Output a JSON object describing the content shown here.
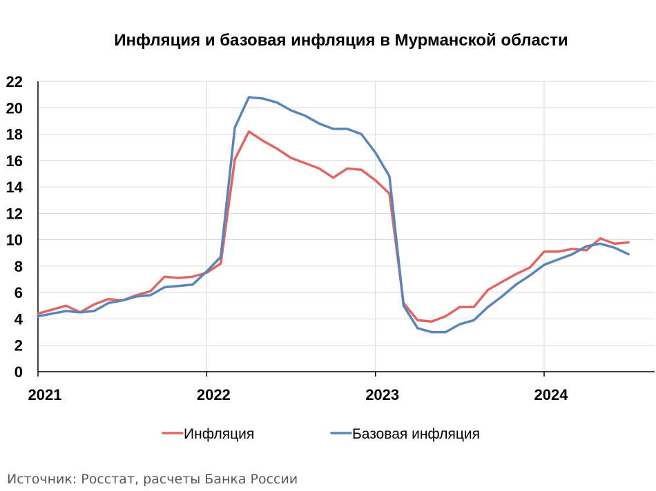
{
  "chart_data": {
    "type": "line",
    "title": "Инфляция и базовая инфляция в Мурманской области",
    "xlabel": "",
    "ylabel": "",
    "ylim": [
      0,
      22
    ],
    "yticks": [
      "0",
      "2",
      "4",
      "6",
      "8",
      "10",
      "12",
      "14",
      "16",
      "18",
      "20",
      "22"
    ],
    "xticks": [
      "2021",
      "2022",
      "2023",
      "2024"
    ],
    "grid": true,
    "legend": "bottom",
    "x_start": "2021-01",
    "x": [
      "2021-01",
      "2021-02",
      "2021-03",
      "2021-04",
      "2021-05",
      "2021-06",
      "2021-07",
      "2021-08",
      "2021-09",
      "2021-10",
      "2021-11",
      "2021-12",
      "2022-01",
      "2022-02",
      "2022-03",
      "2022-04",
      "2022-05",
      "2022-06",
      "2022-07",
      "2022-08",
      "2022-09",
      "2022-10",
      "2022-11",
      "2022-12",
      "2023-01",
      "2023-02",
      "2023-03",
      "2023-04",
      "2023-05",
      "2023-06",
      "2023-07",
      "2023-08",
      "2023-09",
      "2023-10",
      "2023-11",
      "2023-12",
      "2024-01",
      "2024-02",
      "2024-03",
      "2024-04",
      "2024-05",
      "2024-06",
      "2024-07"
    ],
    "series": [
      {
        "name": "Инфляция",
        "color": "#e06666",
        "values": [
          4.4,
          4.7,
          5.0,
          4.5,
          5.1,
          5.5,
          5.4,
          5.8,
          6.1,
          7.2,
          7.1,
          7.2,
          7.5,
          8.2,
          16.1,
          18.2,
          17.5,
          16.9,
          16.2,
          15.8,
          15.4,
          14.7,
          15.4,
          15.3,
          14.5,
          13.5,
          5.2,
          3.9,
          3.8,
          4.2,
          4.9,
          4.9,
          6.2,
          6.8,
          7.4,
          7.9,
          9.1,
          9.1,
          9.3,
          9.2,
          10.1,
          9.7,
          9.8
        ]
      },
      {
        "name": "Базовая инфляция",
        "color": "#5b85b9",
        "values": [
          4.2,
          4.4,
          4.6,
          4.5,
          4.6,
          5.2,
          5.4,
          5.7,
          5.8,
          6.4,
          6.5,
          6.6,
          7.6,
          8.7,
          18.5,
          20.8,
          20.7,
          20.4,
          19.8,
          19.4,
          18.8,
          18.4,
          18.4,
          18.0,
          16.6,
          14.8,
          5.0,
          3.3,
          3.0,
          3.0,
          3.6,
          3.9,
          4.9,
          5.7,
          6.6,
          7.3,
          8.1,
          8.5,
          8.9,
          9.5,
          9.7,
          9.4,
          8.9
        ]
      }
    ]
  },
  "source": "Источник: Росстат, расчеты Банка России"
}
